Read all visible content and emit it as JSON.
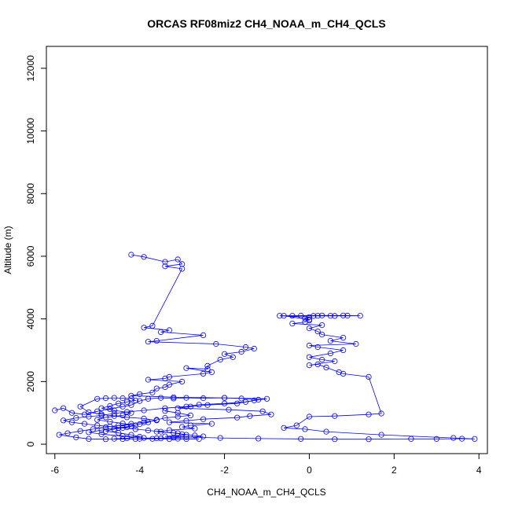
{
  "chart_data": {
    "type": "scatter",
    "title": "ORCAS RF08miz2 CH4_NOAA_m_CH4_QCLS",
    "xlabel": "CH4_NOAA_m_CH4_QCLS",
    "ylabel": "Altitude (m)",
    "xlim": [
      -6.2,
      4.2
    ],
    "ylim": [
      -300,
      12700
    ],
    "xticks": [
      -6,
      -4,
      -2,
      0,
      2,
      4
    ],
    "yticks": [
      0,
      2000,
      4000,
      6000,
      8000,
      10000,
      12000
    ],
    "grid": false,
    "color": "#0000ff",
    "marker": "open-circle",
    "connected": true,
    "series": [
      {
        "points": [
          [
            -4.2,
            6050
          ],
          [
            -3.9,
            5980
          ],
          [
            -3.4,
            5820
          ],
          [
            -3.1,
            5900
          ],
          [
            -3.0,
            5750
          ],
          [
            -3.4,
            5680
          ],
          [
            -3.0,
            5600
          ],
          [
            -3.7,
            3780
          ],
          [
            -3.9,
            3720
          ],
          [
            -3.3,
            3640
          ],
          [
            -3.5,
            3580
          ],
          [
            -2.5,
            3480
          ],
          [
            -3.6,
            3300
          ],
          [
            -3.8,
            3270
          ],
          [
            -2.2,
            3200
          ],
          [
            -1.5,
            3100
          ],
          [
            -1.3,
            3050
          ],
          [
            -1.6,
            2950
          ],
          [
            -2.0,
            2880
          ],
          [
            -1.8,
            2780
          ],
          [
            -2.1,
            2700
          ],
          [
            -2.4,
            2500
          ],
          [
            -2.4,
            2400
          ],
          [
            -2.9,
            2430
          ],
          [
            -2.3,
            2300
          ],
          [
            -2.5,
            2250
          ],
          [
            -3.3,
            2150
          ],
          [
            -3.4,
            2100
          ],
          [
            -3.8,
            2060
          ],
          [
            -3.0,
            2000
          ],
          [
            -3.3,
            1900
          ],
          [
            -3.4,
            1820
          ],
          [
            -3.6,
            1780
          ],
          [
            -3.7,
            1650
          ],
          [
            -4.0,
            1600
          ],
          [
            -4.2,
            1550
          ],
          [
            -3.2,
            1500
          ],
          [
            -2.0,
            1480
          ],
          [
            -1.0,
            1450
          ],
          [
            -1.3,
            1400
          ],
          [
            -1.7,
            1300
          ],
          [
            -2.4,
            1250
          ],
          [
            -2.8,
            1200
          ],
          [
            -3.1,
            1150
          ],
          [
            -1.9,
            1100
          ],
          [
            -1.1,
            1050
          ],
          [
            -0.9,
            950
          ],
          [
            -1.4,
            900
          ],
          [
            -1.7,
            850
          ],
          [
            -2.5,
            800
          ],
          [
            -2.9,
            750
          ],
          [
            -3.3,
            700
          ],
          [
            -2.3,
            650
          ],
          [
            -2.8,
            600
          ],
          [
            -3.0,
            550
          ],
          [
            -2.7,
            500
          ],
          [
            -3.3,
            450
          ],
          [
            -3.6,
            400
          ],
          [
            -3.1,
            350
          ],
          [
            -2.9,
            300
          ],
          [
            -3.4,
            250
          ],
          [
            -2.1,
            200
          ],
          [
            -1.2,
            180
          ],
          [
            -0.2,
            170
          ],
          [
            0.6,
            160
          ],
          [
            1.4,
            160
          ],
          [
            2.4,
            170
          ],
          [
            3.0,
            170
          ],
          [
            3.6,
            175
          ],
          [
            3.9,
            170
          ],
          [
            3.4,
            200
          ],
          [
            1.7,
            300
          ],
          [
            0.4,
            400
          ],
          [
            -0.1,
            480
          ],
          [
            -0.6,
            520
          ],
          [
            -0.3,
            600
          ],
          [
            0.0,
            880
          ],
          [
            0.6,
            900
          ],
          [
            1.4,
            950
          ],
          [
            1.7,
            980
          ],
          [
            1.4,
            2150
          ],
          [
            0.8,
            2250
          ],
          [
            0.7,
            2300
          ],
          [
            0.4,
            2450
          ],
          [
            0.2,
            2550
          ],
          [
            0.0,
            2520
          ],
          [
            0.6,
            2650
          ],
          [
            0.3,
            2700
          ],
          [
            0.0,
            2780
          ],
          [
            0.5,
            2900
          ],
          [
            0.8,
            3000
          ],
          [
            0.2,
            3100
          ],
          [
            0.0,
            3150
          ],
          [
            1.1,
            3200
          ],
          [
            0.5,
            3300
          ],
          [
            0.8,
            3400
          ],
          [
            0.3,
            3500
          ],
          [
            0.2,
            3600
          ],
          [
            0.0,
            3700
          ],
          [
            0.3,
            3800
          ],
          [
            -0.4,
            3850
          ],
          [
            -0.1,
            3900
          ],
          [
            0.0,
            3980
          ],
          [
            -0.6,
            4100
          ],
          [
            0.2,
            4100
          ],
          [
            0.8,
            4110
          ],
          [
            1.2,
            4100
          ],
          [
            0.6,
            4095
          ],
          [
            -0.2,
            4105
          ],
          [
            -0.4,
            4100
          ],
          [
            0.1,
            4095
          ],
          [
            0.5,
            4100
          ],
          [
            0.9,
            4105
          ],
          [
            0.3,
            4110
          ],
          [
            -0.7,
            4100
          ],
          [
            0.0,
            4060
          ],
          [
            -0.1,
            4020
          ],
          [
            0.0,
            3950
          ]
        ]
      },
      {
        "points": [
          [
            -6.0,
            1080
          ],
          [
            -5.8,
            1150
          ],
          [
            -5.6,
            1000
          ],
          [
            -5.3,
            950
          ],
          [
            -5.0,
            1050
          ],
          [
            -4.7,
            1120
          ],
          [
            -4.4,
            1200
          ],
          [
            -4.2,
            1250
          ],
          [
            -4.0,
            1380
          ],
          [
            -3.8,
            1450
          ],
          [
            -3.5,
            1480
          ],
          [
            -3.2,
            1460
          ],
          [
            -2.9,
            1480
          ],
          [
            -2.5,
            1470
          ],
          [
            -2.0,
            1480
          ],
          [
            -1.6,
            1460
          ],
          [
            -1.2,
            1420
          ],
          [
            -1.5,
            1350
          ],
          [
            -2.0,
            1300
          ],
          [
            -2.6,
            1260
          ],
          [
            -2.9,
            1200
          ],
          [
            -3.4,
            1150
          ],
          [
            -3.9,
            1080
          ],
          [
            -4.3,
            1030
          ],
          [
            -4.6,
            980
          ],
          [
            -4.9,
            920
          ],
          [
            -5.2,
            880
          ],
          [
            -5.5,
            840
          ],
          [
            -5.8,
            760
          ],
          [
            -5.6,
            700
          ],
          [
            -5.3,
            650
          ],
          [
            -5.0,
            600
          ],
          [
            -4.7,
            560
          ],
          [
            -4.4,
            520
          ],
          [
            -4.1,
            480
          ],
          [
            -3.8,
            440
          ],
          [
            -3.5,
            400
          ],
          [
            -3.2,
            360
          ],
          [
            -3.0,
            320
          ],
          [
            -2.7,
            280
          ],
          [
            -2.5,
            250
          ],
          [
            -2.9,
            230
          ],
          [
            -3.2,
            210
          ],
          [
            -3.6,
            190
          ],
          [
            -4.0,
            175
          ],
          [
            -4.4,
            165
          ],
          [
            -4.8,
            160
          ],
          [
            -5.2,
            170
          ],
          [
            -5.5,
            220
          ],
          [
            -5.9,
            300
          ],
          [
            -5.7,
            350
          ],
          [
            -5.4,
            420
          ],
          [
            -5.1,
            480
          ],
          [
            -4.8,
            540
          ],
          [
            -4.5,
            600
          ],
          [
            -4.2,
            650
          ],
          [
            -3.9,
            700
          ],
          [
            -3.6,
            760
          ],
          [
            -3.9,
            820
          ],
          [
            -4.3,
            860
          ],
          [
            -4.6,
            900
          ],
          [
            -4.9,
            960
          ],
          [
            -5.2,
            1020
          ],
          [
            -5.4,
            1200
          ],
          [
            -5.0,
            1450
          ],
          [
            -4.8,
            1470
          ],
          [
            -4.6,
            1480
          ],
          [
            -4.4,
            1470
          ],
          [
            -4.2,
            1460
          ],
          [
            -4.1,
            1400
          ],
          [
            -4.3,
            1350
          ],
          [
            -4.5,
            1300
          ],
          [
            -4.7,
            1220
          ],
          [
            -4.9,
            1150
          ],
          [
            -4.6,
            1080
          ],
          [
            -4.2,
            1000
          ],
          [
            -4.4,
            920
          ],
          [
            -4.8,
            860
          ],
          [
            -5.0,
            780
          ],
          [
            -4.7,
            720
          ],
          [
            -4.4,
            660
          ],
          [
            -4.1,
            600
          ],
          [
            -4.3,
            540
          ],
          [
            -4.6,
            480
          ],
          [
            -4.8,
            420
          ],
          [
            -4.5,
            360
          ],
          [
            -4.2,
            300
          ],
          [
            -4.0,
            240
          ],
          [
            -4.3,
            190
          ],
          [
            -4.6,
            175
          ],
          [
            -4.1,
            170
          ],
          [
            -3.7,
            172
          ],
          [
            -3.3,
            168
          ],
          [
            -2.9,
            165
          ],
          [
            -2.6,
            170
          ],
          [
            -3.1,
            178
          ],
          [
            -3.5,
            185
          ],
          [
            -3.9,
            200
          ],
          [
            -4.4,
            260
          ],
          [
            -4.9,
            320
          ],
          [
            -5.2,
            380
          ],
          [
            -4.9,
            450
          ],
          [
            -4.5,
            520
          ],
          [
            -4.2,
            580
          ],
          [
            -4.0,
            640
          ],
          [
            -3.8,
            700
          ],
          [
            -3.6,
            780
          ],
          [
            -3.4,
            840
          ],
          [
            -3.1,
            880
          ],
          [
            -2.8,
            920
          ],
          [
            -3.1,
            1000
          ],
          [
            -3.4,
            1060
          ]
        ]
      }
    ]
  }
}
